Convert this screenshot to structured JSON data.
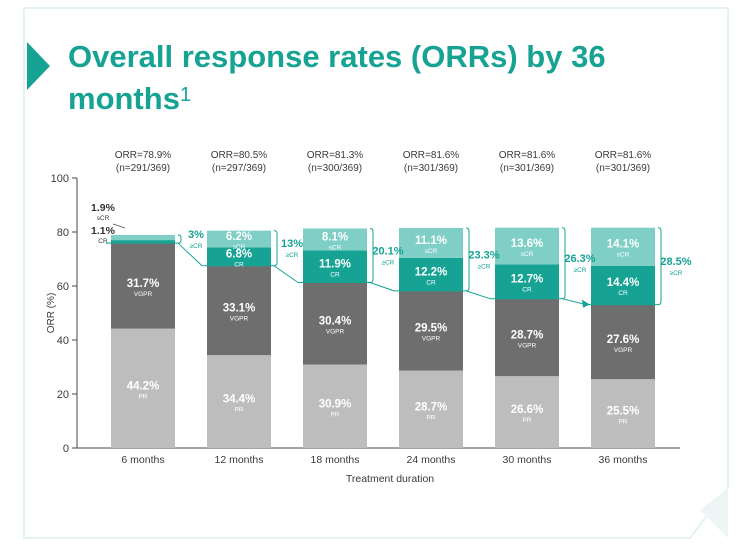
{
  "title": {
    "text": "Overall response rates (ORRs) by 36 months",
    "footnote": "1"
  },
  "colors": {
    "brand": "#16a394",
    "pr": "#bdbdbd",
    "vgpr": "#6e6e6e",
    "cr": "#16a394",
    "scr": "#7fcfc7",
    "text": "#3a3a3a",
    "arrow": "#16a394"
  },
  "chart_data": {
    "type": "bar",
    "stacked": true,
    "title": "",
    "xlabel": "Treatment duration",
    "ylabel": "ORR (%)",
    "ylim": [
      0,
      100
    ],
    "yticks": [
      0,
      20,
      40,
      60,
      80,
      100
    ],
    "grid": false,
    "categories": [
      "6 months",
      "12 months",
      "18 months",
      "24 months",
      "30 months",
      "36 months"
    ],
    "orr_labels": [
      {
        "line1": "ORR=78.9%",
        "line2": "(n=291/369)"
      },
      {
        "line1": "ORR=80.5%",
        "line2": "(n=297/369)"
      },
      {
        "line1": "ORR=81.3%",
        "line2": "(n=300/369)"
      },
      {
        "line1": "ORR=81.6%",
        "line2": "(n=301/369)"
      },
      {
        "line1": "ORR=81.6%",
        "line2": "(n=301/369)"
      },
      {
        "line1": "ORR=81.6%",
        "line2": "(n=301/369)"
      }
    ],
    "series": [
      {
        "name": "PR",
        "values": [
          44.2,
          34.4,
          30.9,
          28.7,
          26.6,
          25.5
        ],
        "labels": [
          "44.2%",
          "34.4%",
          "30.9%",
          "28.7%",
          "26.6%",
          "25.5%"
        ]
      },
      {
        "name": "VGPR",
        "values": [
          31.7,
          33.1,
          30.4,
          29.5,
          28.7,
          27.6
        ],
        "labels": [
          "31.7%",
          "33.1%",
          "30.4%",
          "29.5%",
          "28.7%",
          "27.6%"
        ]
      },
      {
        "name": "CR",
        "values": [
          1.1,
          6.8,
          11.9,
          12.2,
          12.7,
          14.4
        ],
        "labels": [
          "1.1%",
          "6.8%",
          "11.9%",
          "12.2%",
          "12.7%",
          "14.4%"
        ]
      },
      {
        "name": "sCR",
        "values": [
          1.9,
          6.2,
          8.1,
          11.1,
          13.6,
          14.1
        ],
        "labels": [
          "1.9%",
          "6.2%",
          "8.1%",
          "11.1%",
          "13.6%",
          "14.1%"
        ]
      }
    ],
    "ge_cr": {
      "name": "≥CR",
      "values": [
        3,
        13,
        20.1,
        23.3,
        26.3,
        28.5
      ],
      "labels": [
        "3%",
        "13%",
        "20.1%",
        "23.3%",
        "26.3%",
        "28.5%"
      ]
    }
  }
}
